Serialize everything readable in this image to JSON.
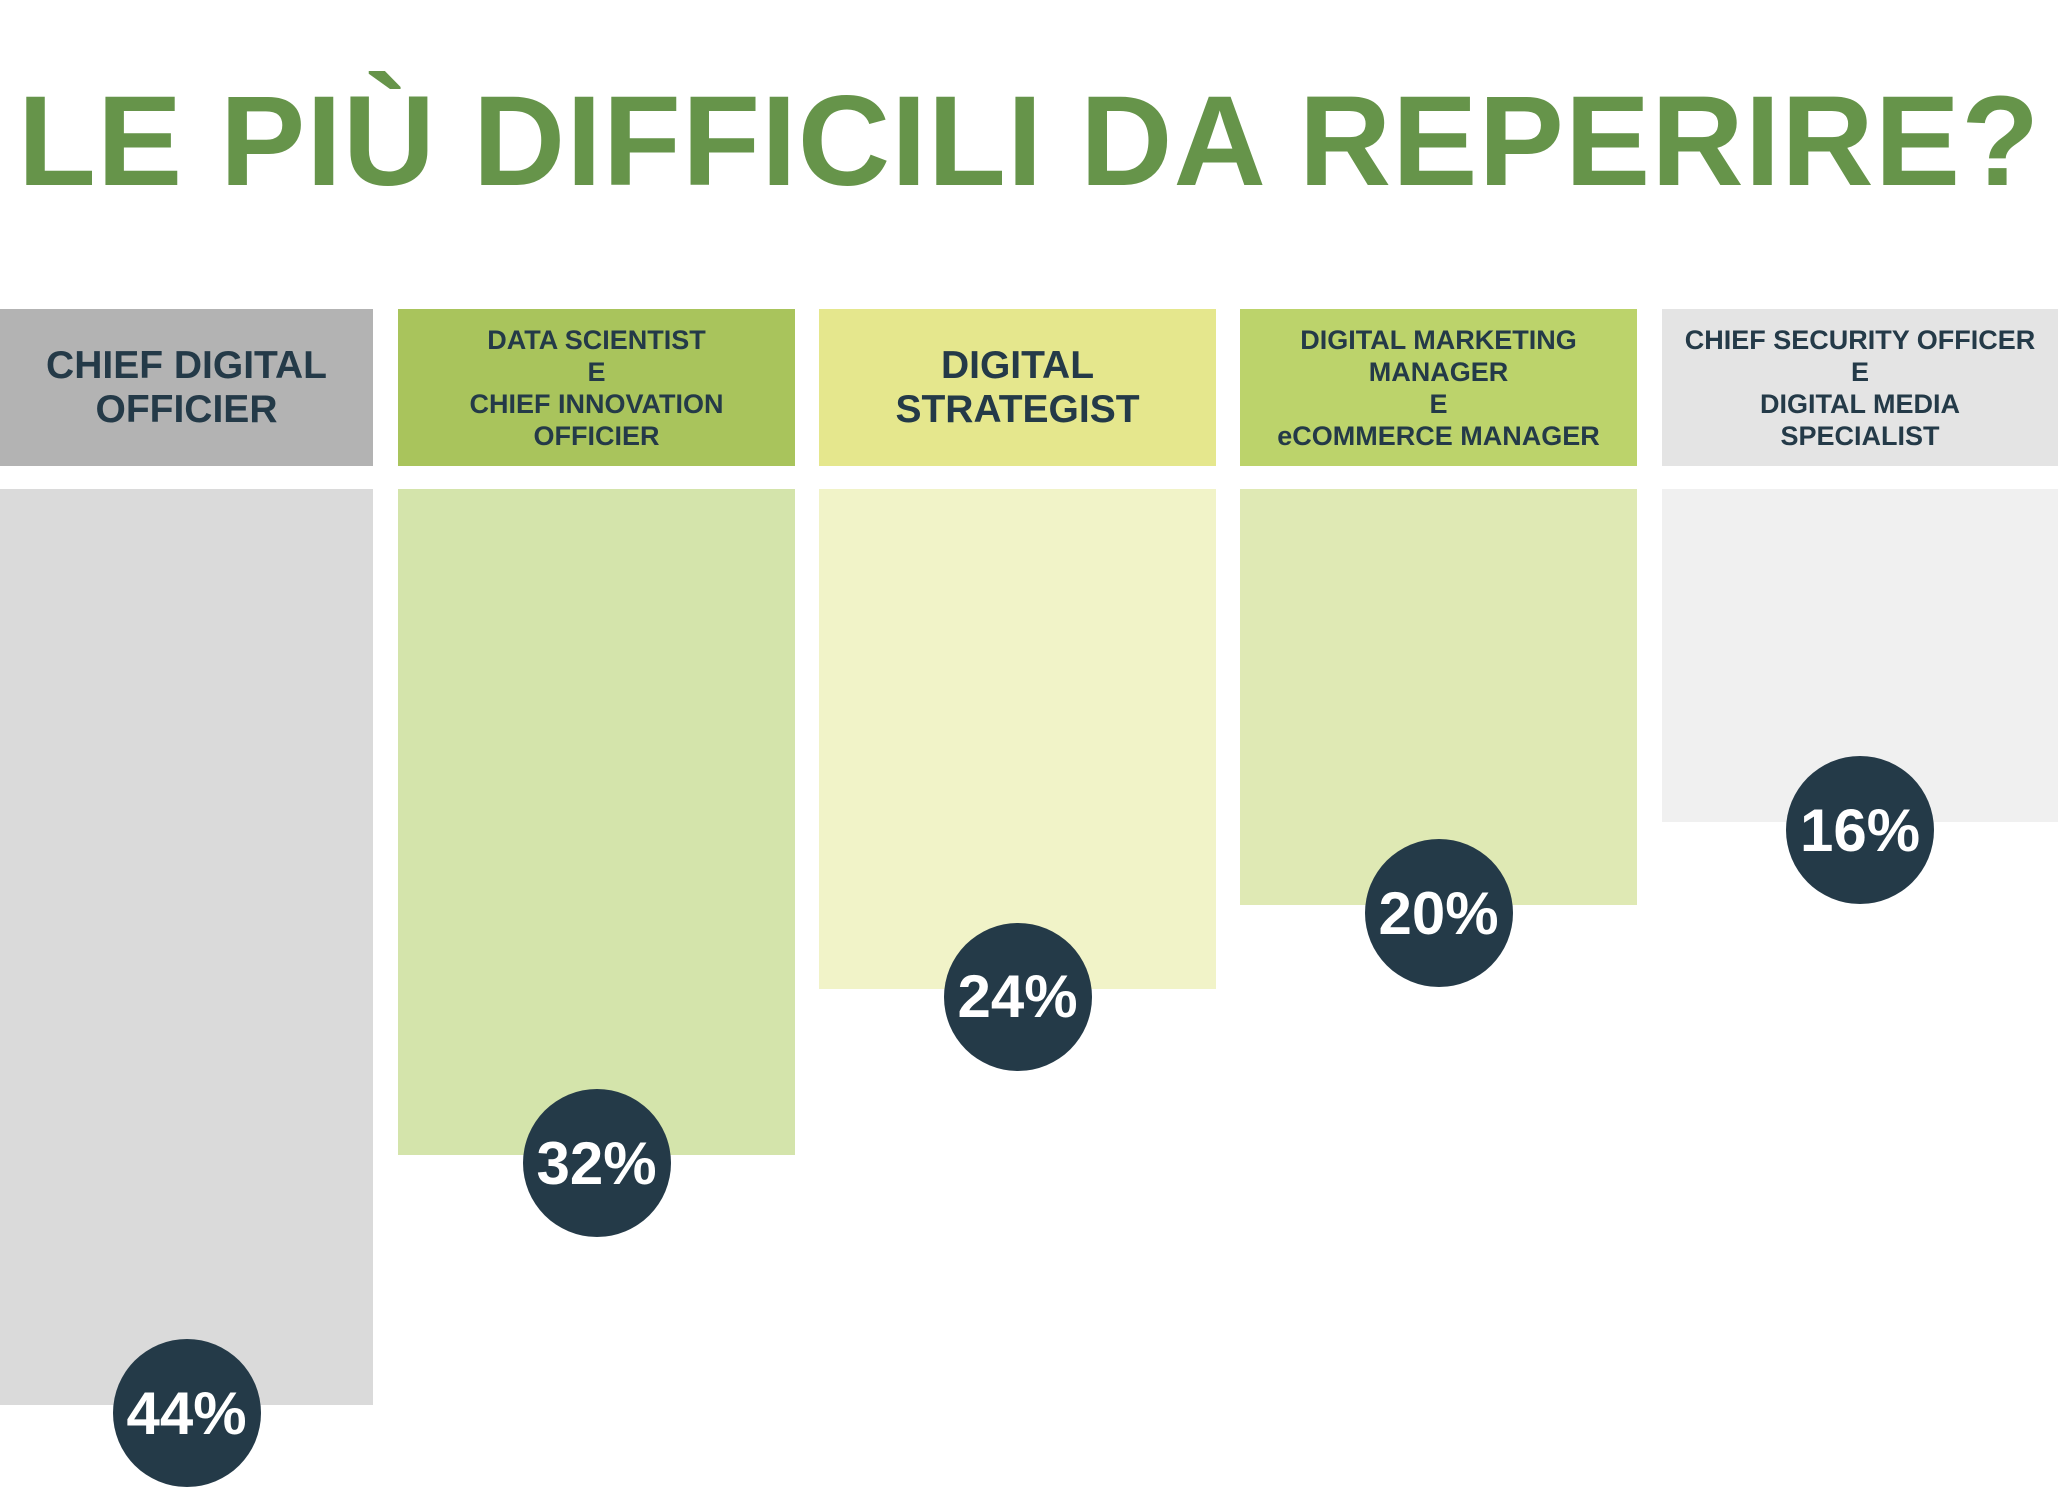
{
  "title": "LE PIÙ DIFFICILI DA REPERIRE?",
  "chart_data": {
    "type": "bar",
    "categories": [
      "CHIEF DIGITAL\nOFFICIER",
      "DATA SCIENTIST\nE\nCHIEF INNOVATION\nOFFICIER",
      "DIGITAL\nSTRATEGIST",
      "DIGITAL MARKETING\nMANAGER\nE\neCOMMERCE MANAGER",
      "CHIEF SECURITY OFFICER\nE\nDIGITAL MEDIA\nSPECIALIST"
    ],
    "values": [
      44,
      32,
      24,
      20,
      16
    ],
    "value_labels": [
      "44%",
      "32%",
      "24%",
      "20%",
      "16%"
    ],
    "unit": "%",
    "ylim": [
      0,
      44
    ],
    "grid": false,
    "legend": "none",
    "header_colors": [
      "#b3b3b3",
      "#a9c45c",
      "#e5e78d",
      "#bcd36b",
      "#e4e4e4"
    ],
    "bar_colors": [
      "#dadada",
      "#d4e4ab",
      "#f1f3c8",
      "#dfe9b4",
      "#f0f0f0"
    ],
    "bubble_color": "#243a48",
    "title_color": "#66944a"
  }
}
